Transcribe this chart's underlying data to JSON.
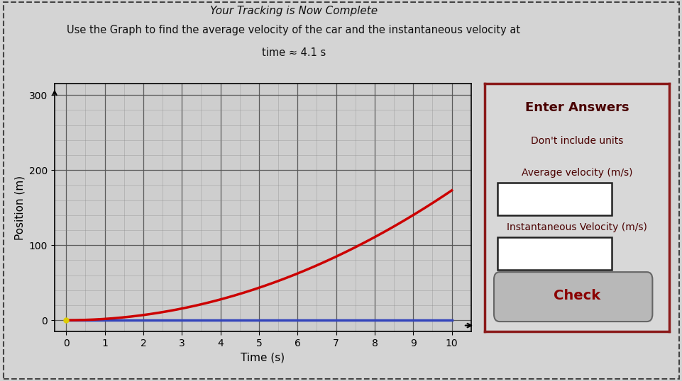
{
  "title_line1": "Your Tracking is Now Complete",
  "subtitle": "Use the Graph to find the average velocity of the car and the instantaneous velocity at",
  "subtitle2": "time ≈ 4.1 s",
  "xlabel": "Time (s)",
  "ylabel": "Position (m)",
  "xlim": [
    -0.3,
    10.5
  ],
  "ylim": [
    -15,
    315
  ],
  "xticks": [
    0,
    1,
    2,
    3,
    4,
    5,
    6,
    7,
    8,
    9,
    10
  ],
  "yticks": [
    0,
    100,
    200,
    300
  ],
  "curve_color": "#cc0000",
  "hline_color": "#3344bb",
  "bg_color": "#d4d4d4",
  "plot_bg_color": "#cecece",
  "grid_major_color": "#555555",
  "grid_minor_color": "#888888",
  "curve_exponent": 2.0,
  "curve_scale": 1.73,
  "panel_bg": "#d8d8d8",
  "panel_border": "#8b1a1a",
  "title_color": "#111111",
  "label_color": "#4a0000",
  "button_bg": "#b8b8b8",
  "button_text_color": "#8b0000",
  "enter_answers_text": "Enter Answers",
  "dont_include_text": "Don't include units",
  "avg_vel_text": "Average velocity (m/s)",
  "inst_vel_text": "Instantaneous Velocity (m/s)",
  "check_text": "Check",
  "outer_border_color": "#555555"
}
